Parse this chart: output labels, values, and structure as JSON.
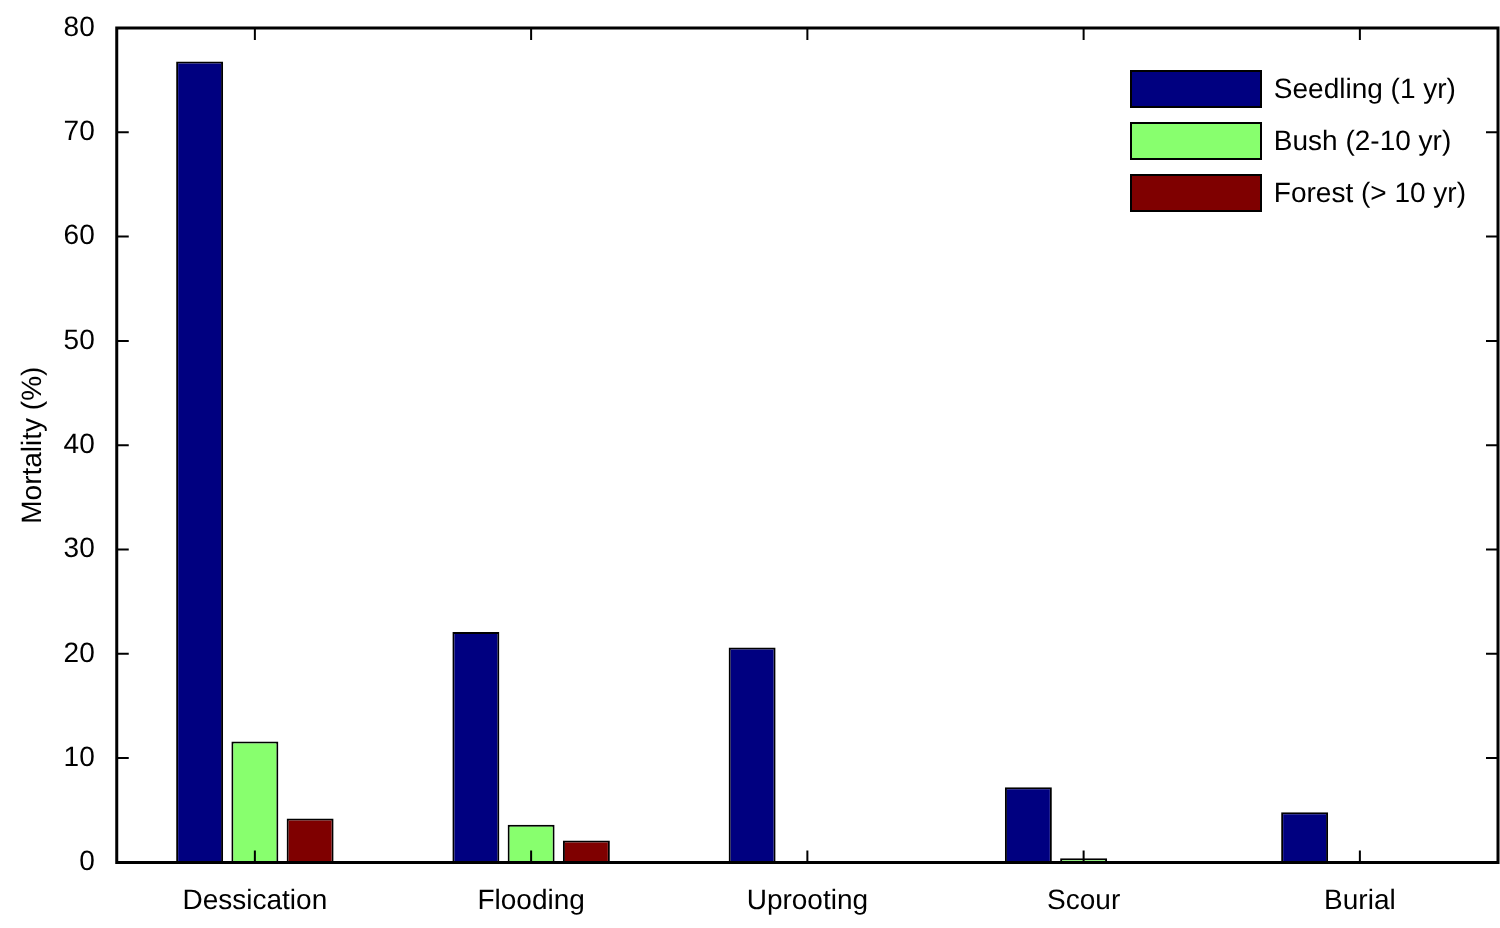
{
  "chart_data": {
    "type": "bar",
    "ylabel": "Mortality (%)",
    "categories": [
      "Dessication",
      "Flooding",
      "Uprooting",
      "Scour",
      "Burial"
    ],
    "series": [
      {
        "name": "Seedling (1 yr)",
        "color": "#000080",
        "values": [
          76.8,
          22.1,
          20.6,
          7.2,
          4.8
        ]
      },
      {
        "name": "Bush (2-10 yr)",
        "color": "#88ff6e",
        "values": [
          11.6,
          3.6,
          0,
          0.4,
          0
        ]
      },
      {
        "name": "Forest (> 10 yr)",
        "color": "#7f0000",
        "values": [
          4.2,
          2.1,
          0,
          0,
          0
        ]
      }
    ],
    "ylim": [
      0,
      80
    ],
    "yticks": [
      0,
      10,
      20,
      30,
      40,
      50,
      60,
      70,
      80
    ],
    "legend": "top right"
  }
}
